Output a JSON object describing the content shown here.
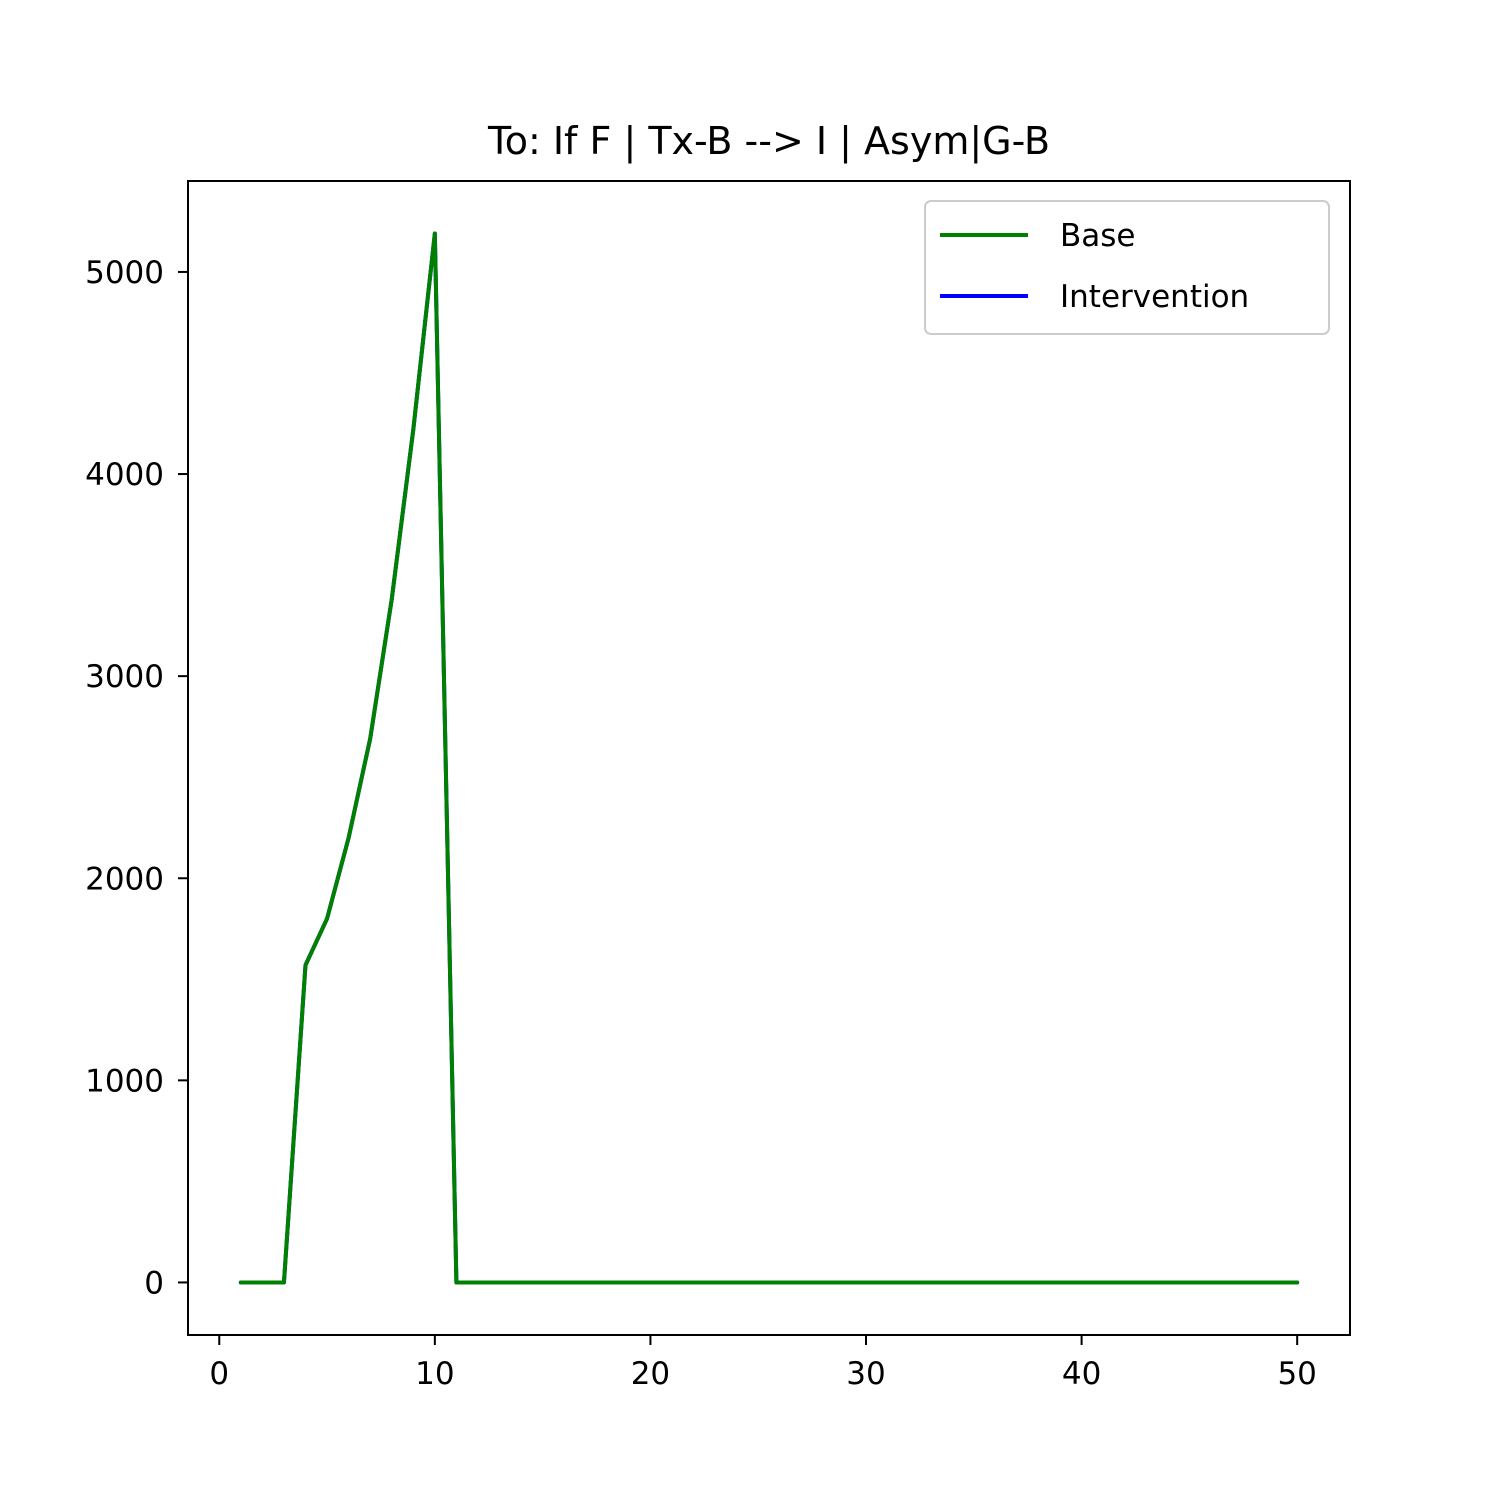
{
  "chart_data": {
    "type": "line",
    "title": "To: If F | Tx-B  --> I | Asym|G-B",
    "xlabel": "",
    "ylabel": "",
    "xlim": [
      -1.45,
      52.45
    ],
    "ylim": [
      -260,
      5450
    ],
    "xticks": [
      0,
      10,
      20,
      30,
      40,
      50
    ],
    "yticks": [
      0,
      1000,
      2000,
      3000,
      4000,
      5000
    ],
    "grid": false,
    "legend": "top-right",
    "x": [
      1,
      2,
      3,
      4,
      5,
      6,
      7,
      8,
      9,
      10,
      11,
      12,
      13,
      14,
      15,
      16,
      17,
      18,
      19,
      20,
      21,
      22,
      23,
      24,
      25,
      26,
      27,
      28,
      29,
      30,
      31,
      32,
      33,
      34,
      35,
      36,
      37,
      38,
      39,
      40,
      41,
      42,
      43,
      44,
      45,
      46,
      47,
      48,
      49,
      50
    ],
    "series": [
      {
        "name": "Intervention",
        "color": "#0000ff",
        "values": [
          0,
          0,
          0,
          1570,
          1800,
          2200,
          2690,
          3380,
          4220,
          5190,
          0,
          0,
          0,
          0,
          0,
          0,
          0,
          0,
          0,
          0,
          0,
          0,
          0,
          0,
          0,
          0,
          0,
          0,
          0,
          0,
          0,
          0,
          0,
          0,
          0,
          0,
          0,
          0,
          0,
          0,
          0,
          0,
          0,
          0,
          0,
          0,
          0,
          0,
          0,
          0
        ]
      },
      {
        "name": "Base",
        "color": "#008000",
        "values": [
          0,
          0,
          0,
          1570,
          1800,
          2200,
          2690,
          3380,
          4220,
          5190,
          0,
          0,
          0,
          0,
          0,
          0,
          0,
          0,
          0,
          0,
          0,
          0,
          0,
          0,
          0,
          0,
          0,
          0,
          0,
          0,
          0,
          0,
          0,
          0,
          0,
          0,
          0,
          0,
          0,
          0,
          0,
          0,
          0,
          0,
          0,
          0,
          0,
          0,
          0,
          0
        ]
      }
    ],
    "legend_order": [
      "Base",
      "Intervention"
    ]
  }
}
